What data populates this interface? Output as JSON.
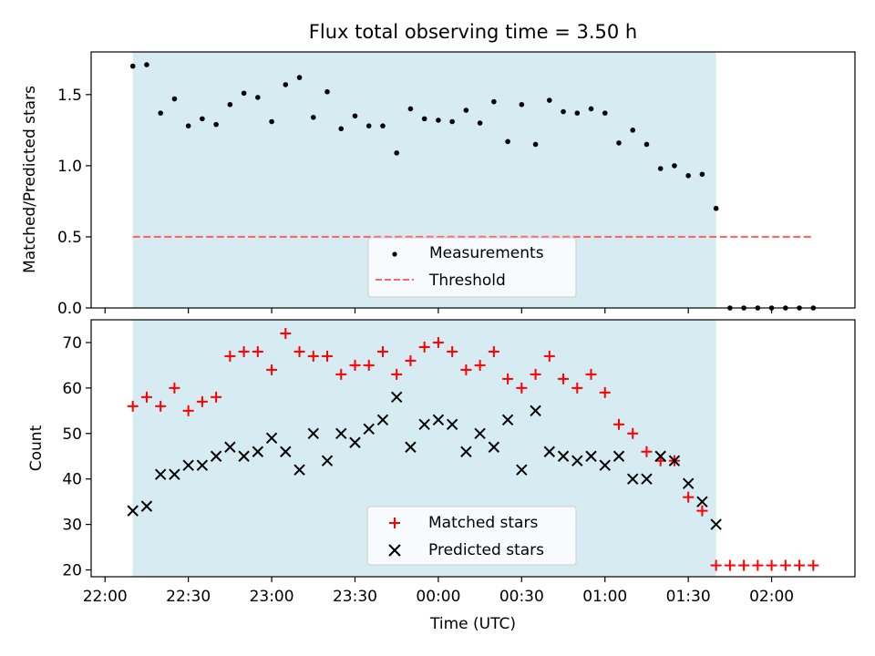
{
  "chart_data": [
    {
      "type": "scatter",
      "title": "Flux total observing time = 3.50 h",
      "xlabel": "",
      "ylabel": "Matched/Predicted stars",
      "xlim": [
        "21:55",
        "02:30"
      ],
      "ylim": [
        0,
        1.8
      ],
      "yticks": [
        0.0,
        0.5,
        1.0,
        1.5
      ],
      "ytick_labels": [
        "0.0",
        "0.5",
        "1.0",
        "1.5"
      ],
      "observing_span": [
        "22:10",
        "01:40"
      ],
      "observing_span_color": "#add8e6",
      "legend": {
        "placement": "lower-center",
        "entries": [
          "Measurements",
          "Threshold"
        ]
      },
      "series": [
        {
          "name": "Measurements",
          "marker": "dot",
          "color": "#000000",
          "x": [
            "22:10",
            "22:15",
            "22:20",
            "22:25",
            "22:30",
            "22:35",
            "22:40",
            "22:45",
            "22:50",
            "22:55",
            "23:00",
            "23:05",
            "23:10",
            "23:15",
            "23:20",
            "23:25",
            "23:30",
            "23:35",
            "23:40",
            "23:45",
            "23:50",
            "23:55",
            "00:00",
            "00:05",
            "00:10",
            "00:15",
            "00:20",
            "00:25",
            "00:30",
            "00:35",
            "00:40",
            "00:45",
            "00:50",
            "00:55",
            "01:00",
            "01:05",
            "01:10",
            "01:15",
            "01:20",
            "01:25",
            "01:30",
            "01:35",
            "01:40",
            "01:45",
            "01:50",
            "01:55",
            "02:00",
            "02:05",
            "02:10",
            "02:15"
          ],
          "y": [
            1.7,
            1.71,
            1.37,
            1.47,
            1.28,
            1.33,
            1.29,
            1.43,
            1.51,
            1.48,
            1.31,
            1.57,
            1.62,
            1.34,
            1.52,
            1.26,
            1.35,
            1.28,
            1.28,
            1.09,
            1.4,
            1.33,
            1.32,
            1.31,
            1.39,
            1.3,
            1.45,
            1.17,
            1.43,
            1.15,
            1.46,
            1.38,
            1.37,
            1.4,
            1.37,
            1.16,
            1.25,
            1.15,
            0.98,
            1.0,
            0.93,
            0.94,
            0.7,
            0.0,
            0.0,
            0.0,
            0.0,
            0.0,
            0.0,
            0.0
          ]
        },
        {
          "name": "Threshold",
          "style": "dashed",
          "color": "#ff6666",
          "x": [
            "22:10",
            "02:15"
          ],
          "y": [
            0.5,
            0.5
          ]
        }
      ]
    },
    {
      "type": "scatter",
      "title": "",
      "xlabel": "Time (UTC)",
      "ylabel": "Count",
      "xlim": [
        "21:55",
        "02:30"
      ],
      "ylim": [
        18.5,
        75
      ],
      "yticks": [
        20,
        30,
        40,
        50,
        60,
        70
      ],
      "ytick_labels": [
        "20",
        "30",
        "40",
        "50",
        "60",
        "70"
      ],
      "xticks": [
        "22:00",
        "22:30",
        "23:00",
        "23:30",
        "00:00",
        "00:30",
        "01:00",
        "01:30",
        "02:00"
      ],
      "xtick_labels": [
        "22:00",
        "22:30",
        "23:00",
        "23:30",
        "00:00",
        "00:30",
        "01:00",
        "01:30",
        "02:00"
      ],
      "observing_span": [
        "22:10",
        "01:40"
      ],
      "observing_span_color": "#add8e6",
      "legend": {
        "placement": "lower-center",
        "entries": [
          "Matched stars",
          "Predicted stars"
        ]
      },
      "series": [
        {
          "name": "Matched stars",
          "marker": "plus",
          "color": "#ff0000",
          "x": [
            "22:10",
            "22:15",
            "22:20",
            "22:25",
            "22:30",
            "22:35",
            "22:40",
            "22:45",
            "22:50",
            "22:55",
            "23:00",
            "23:05",
            "23:10",
            "23:15",
            "23:20",
            "23:25",
            "23:30",
            "23:35",
            "23:40",
            "23:45",
            "23:50",
            "23:55",
            "00:00",
            "00:05",
            "00:10",
            "00:15",
            "00:20",
            "00:25",
            "00:30",
            "00:35",
            "00:40",
            "00:45",
            "00:50",
            "00:55",
            "01:00",
            "01:05",
            "01:10",
            "01:15",
            "01:20",
            "01:25",
            "01:30",
            "01:35",
            "01:40",
            "01:45",
            "01:50",
            "01:55",
            "02:00",
            "02:05",
            "02:10",
            "02:15"
          ],
          "y": [
            56,
            58,
            56,
            60,
            55,
            57,
            58,
            67,
            68,
            68,
            64,
            72,
            68,
            67,
            67,
            63,
            65,
            65,
            68,
            63,
            66,
            69,
            70,
            68,
            64,
            65,
            68,
            62,
            60,
            63,
            67,
            62,
            60,
            63,
            59,
            52,
            50,
            46,
            44,
            44,
            36,
            33,
            21,
            21,
            21,
            21,
            21,
            21,
            21,
            21
          ]
        },
        {
          "name": "Predicted stars",
          "marker": "x",
          "color": "#000000",
          "x": [
            "22:10",
            "22:15",
            "22:20",
            "22:25",
            "22:30",
            "22:35",
            "22:40",
            "22:45",
            "22:50",
            "22:55",
            "23:00",
            "23:05",
            "23:10",
            "23:15",
            "23:20",
            "23:25",
            "23:30",
            "23:35",
            "23:40",
            "23:45",
            "23:50",
            "23:55",
            "00:00",
            "00:05",
            "00:10",
            "00:15",
            "00:20",
            "00:25",
            "00:30",
            "00:35",
            "00:40",
            "00:45",
            "00:50",
            "00:55",
            "01:00",
            "01:05",
            "01:10",
            "01:15",
            "01:20",
            "01:25",
            "01:30",
            "01:35",
            "01:40"
          ],
          "y": [
            33,
            34,
            41,
            41,
            43,
            43,
            45,
            47,
            45,
            46,
            49,
            46,
            42,
            50,
            44,
            50,
            48,
            51,
            53,
            58,
            47,
            52,
            53,
            52,
            46,
            50,
            47,
            53,
            42,
            55,
            46,
            45,
            44,
            45,
            43,
            45,
            40,
            40,
            45,
            44,
            39,
            35,
            30
          ]
        }
      ]
    }
  ]
}
